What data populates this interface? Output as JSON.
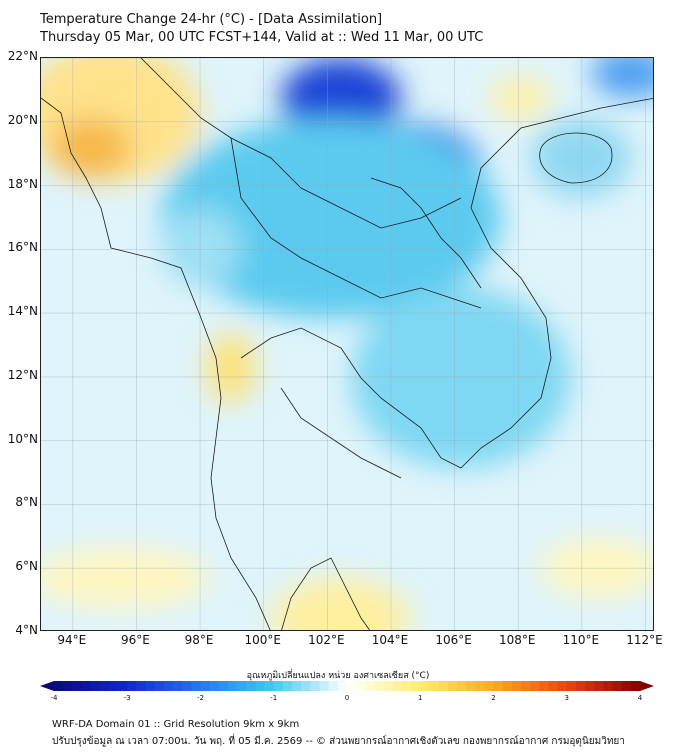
{
  "title": {
    "line1": "Temperature Change 24-hr (°C) - [Data Assimilation]",
    "line2": "Thursday 05 Mar, 00 UTC FCST+144, Valid at :: Wed 11 Mar, 00 UTC"
  },
  "map": {
    "lat_labels": [
      "22°N",
      "20°N",
      "18°N",
      "16°N",
      "14°N",
      "12°N",
      "10°N",
      "8°N",
      "6°N",
      "4°N"
    ],
    "lon_labels": [
      "94°E",
      "96°E",
      "98°E",
      "100°E",
      "102°E",
      "104°E",
      "106°E",
      "108°E",
      "110°E",
      "112°E"
    ],
    "lat_range": [
      4,
      22
    ],
    "lon_range": [
      93,
      112.3
    ]
  },
  "colorbar": {
    "title": "อุณหภูมิเปลี่ยนแปลง หน่วย องศาเซลเซียส (°C)",
    "tick_labels": [
      "-4",
      "-3",
      "-2",
      "-1",
      "0",
      "1",
      "2",
      "3",
      "4"
    ],
    "range": [
      -4,
      4
    ]
  },
  "footer": {
    "line1": "WRF-DA Domain 01 :: Grid Resolution 9km x 9km",
    "line2": "ปรับปรุงข้อมูล ณ เวลา 07:00น. วัน พฤ. ที่ 05 มี.ค. 2569 -- © ส่วนพยากรณ์อากาศเชิงตัวเลข กองพยากรณ์อากาศ กรมอุตุนิยมวิทยา"
  }
}
